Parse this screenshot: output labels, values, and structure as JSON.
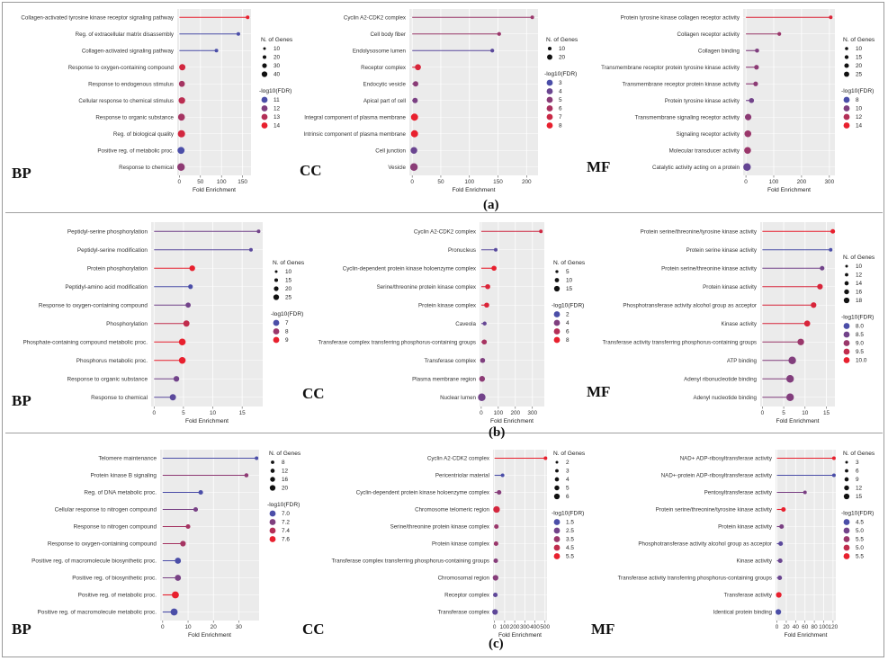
{
  "figure": {
    "sub_labels": [
      "(a)",
      "(b)",
      "(c)"
    ],
    "ontology_labels": [
      "BP",
      "CC",
      "MF"
    ]
  },
  "legend_titles": {
    "size": "N. of Genes",
    "color": "-log10(FDR)"
  },
  "colors": {
    "low": "#4b4ea8",
    "high": "#e8202e",
    "panel_bg": "#ebebeb",
    "grid": "#ffffff"
  },
  "chart_data": [
    {
      "type": "scatter",
      "id": "a-bp",
      "row": 0,
      "col": 0,
      "ontology": "BP",
      "xlabel": "Fold Enrichment",
      "xlim": [
        -5,
        170
      ],
      "xticks": [
        0,
        50,
        100,
        150
      ],
      "categories": [
        "Collagen-activated tyrosine kinase receptor signaling pathway",
        "Reg. of extracellular matrix disassembly",
        "Collagen-activated signaling pathway",
        "Response to oxygen-containing compound",
        "Response to endogenous stimulus",
        "Cellular response to chemical stimulus",
        "Response to organic substance",
        "Reg. of biological quality",
        "Positive reg. of metabolic proc.",
        "Response to chemical"
      ],
      "x": [
        162,
        140,
        88,
        7,
        6,
        6,
        5,
        5,
        4,
        4
      ],
      "genes": [
        6,
        7,
        8,
        30,
        28,
        33,
        35,
        38,
        36,
        40
      ],
      "fdr": [
        14.5,
        11.0,
        11.0,
        14.0,
        13.0,
        13.5,
        13.0,
        14.0,
        11.0,
        12.5
      ],
      "size_legend": [
        10,
        20,
        30,
        40
      ],
      "color_legend": [
        11,
        12,
        13,
        14
      ],
      "size_range": [
        10,
        40
      ],
      "color_range": [
        11,
        14.5
      ]
    },
    {
      "type": "scatter",
      "id": "a-cc",
      "row": 0,
      "col": 1,
      "ontology": "CC",
      "xlabel": "Fold Enrichment",
      "xlim": [
        -5,
        220
      ],
      "xticks": [
        0,
        50,
        100,
        150,
        200
      ],
      "categories": [
        "Cyclin A2-CDK2 complex",
        "Cell body fiber",
        "Endolysosome lumen",
        "Receptor complex",
        "Endocytic vesicle",
        "Apical part of cell",
        "Integral component of plasma membrane",
        "Intrinsic component of plasma membrane",
        "Cell junction",
        "Vesicle"
      ],
      "x": [
        210,
        152,
        140,
        10,
        6,
        5,
        4,
        4,
        3,
        3
      ],
      "genes": [
        4,
        5,
        5,
        15,
        12,
        12,
        20,
        20,
        18,
        22
      ],
      "fdr": [
        5.5,
        5.5,
        3.5,
        7.5,
        5.0,
        4.5,
        8.0,
        8.0,
        4.0,
        5.0
      ],
      "size_legend": [
        10,
        20
      ],
      "color_legend": [
        3,
        4,
        5,
        6,
        7,
        8
      ],
      "size_range": [
        4,
        22
      ],
      "color_range": [
        3,
        8
      ]
    },
    {
      "type": "scatter",
      "id": "a-mf",
      "row": 0,
      "col": 2,
      "ontology": "MF",
      "xlabel": "Fold Enrichment",
      "xlim": [
        -10,
        320
      ],
      "xticks": [
        0,
        100,
        200,
        300
      ],
      "categories": [
        "Protein tyrosine kinase collagen receptor activity",
        "Collagen receptor activity",
        "Collagen binding",
        "Transmembrane receptor protein tyrosine kinase activity",
        "Transmembrane receptor protein kinase activity",
        "Protein tyrosine kinase activity",
        "Transmembrane signaling receptor activity",
        "Signaling receptor activity",
        "Molecular transducer activity",
        "Catalytic activity acting on a protein"
      ],
      "x": [
        305,
        120,
        40,
        38,
        35,
        20,
        8,
        7,
        6,
        4
      ],
      "genes": [
        6,
        7,
        9,
        12,
        12,
        14,
        22,
        24,
        24,
        28
      ],
      "fdr": [
        13.5,
        11.0,
        10.0,
        10.5,
        10.5,
        9.5,
        10.5,
        11.0,
        11.0,
        9.0
      ],
      "size_legend": [
        10,
        15,
        20,
        25
      ],
      "color_legend": [
        8,
        10,
        12,
        14
      ],
      "size_range": [
        6,
        28
      ],
      "color_range": [
        8,
        14
      ]
    },
    {
      "type": "scatter",
      "id": "b-bp",
      "row": 1,
      "col": 0,
      "ontology": "BP",
      "xlabel": "Fold Enrichment",
      "xlim": [
        -0.5,
        18.5
      ],
      "xticks": [
        0,
        5,
        10,
        15
      ],
      "categories": [
        "Peptidyl-serine phosphorylation",
        "Peptidyl-serine modification",
        "Protein phosphorylation",
        "Peptidyl-amino acid modification",
        "Response to oxygen-containing compound",
        "Phosphorylation",
        "Phosphate-containing compound metabolic proc.",
        "Phosphorus metabolic proc.",
        "Response to organic substance",
        "Response to chemical"
      ],
      "x": [
        17.8,
        16.5,
        6.5,
        6.2,
        5.8,
        5.5,
        4.8,
        4.8,
        3.8,
        3.2
      ],
      "genes": [
        10,
        10,
        18,
        14,
        16,
        20,
        22,
        22,
        18,
        20
      ],
      "fdr": [
        7.5,
        7.2,
        9.0,
        7.0,
        7.5,
        8.5,
        9.0,
        9.0,
        7.5,
        7.2
      ],
      "size_legend": [
        10,
        15,
        20,
        25
      ],
      "color_legend": [
        7,
        8,
        9
      ],
      "size_range": [
        10,
        25
      ],
      "color_range": [
        7,
        9
      ]
    },
    {
      "type": "scatter",
      "id": "b-cc",
      "row": 1,
      "col": 1,
      "ontology": "CC",
      "xlabel": "Fold Enrichment",
      "xlim": [
        -10,
        370
      ],
      "xticks": [
        0,
        100,
        200,
        300
      ],
      "xtick_labels": [
        "0",
        "100",
        "200",
        "300"
      ],
      "categories": [
        "Cyclin A2-CDK2 complex",
        "Pronucleus",
        "Cyclin-dependent protein kinase holoenzyme complex",
        "Serine/threonine protein kinase complex",
        "Protein kinase complex",
        "Caveola",
        "Transferase complex transferring phosphorus-containing groups",
        "Transferase complex",
        "Plasma membrane region",
        "Nuclear lumen"
      ],
      "x": [
        350,
        85,
        75,
        38,
        32,
        20,
        18,
        8,
        5,
        3
      ],
      "genes": [
        4,
        4,
        8,
        8,
        8,
        5,
        8,
        8,
        10,
        15
      ],
      "fdr": [
        7.0,
        2.5,
        8.0,
        7.5,
        7.5,
        3.0,
        5.5,
        4.0,
        4.5,
        3.5
      ],
      "size_legend": [
        5,
        10,
        15
      ],
      "color_legend": [
        2,
        4,
        6,
        8
      ],
      "size_range": [
        4,
        15
      ],
      "color_range": [
        2,
        8
      ]
    },
    {
      "type": "scatter",
      "id": "b-mf",
      "row": 1,
      "col": 2,
      "ontology": "MF",
      "xlabel": "Fold Enrichment",
      "xlim": [
        -0.5,
        17
      ],
      "xticks": [
        0,
        5,
        10,
        15
      ],
      "categories": [
        "Protein serine/threonine/tyrosine kinase activity",
        "Protein serine kinase activity",
        "Protein serine/threonine kinase activity",
        "Protein kinase activity",
        "Phosphotransferase activity alcohol group as acceptor",
        "Kinase activity",
        "Transferase activity transferring phosphorus-containing groups",
        "ATP binding",
        "Adenyl ribonucleotide binding",
        "Adenyl nucleotide binding"
      ],
      "x": [
        16.5,
        16.0,
        14.0,
        13.5,
        12.0,
        10.5,
        9.0,
        7.0,
        6.5,
        6.5
      ],
      "genes": [
        12,
        10,
        12,
        14,
        14,
        15,
        16,
        18,
        18,
        18
      ],
      "fdr": [
        10.0,
        8.0,
        8.5,
        9.8,
        9.8,
        9.8,
        9.0,
        8.7,
        8.7,
        8.7
      ],
      "size_legend": [
        10,
        12,
        14,
        16,
        18
      ],
      "color_legend": [
        "8.0",
        "8.5",
        "9.0",
        "9.5",
        "10.0"
      ],
      "size_range": [
        10,
        18
      ],
      "color_range": [
        8,
        10
      ]
    },
    {
      "type": "scatter",
      "id": "c-bp",
      "row": 2,
      "col": 0,
      "ontology": "BP",
      "xlabel": "Fold Enrichment",
      "xlim": [
        -1,
        38
      ],
      "xticks": [
        0,
        10,
        20,
        30
      ],
      "categories": [
        "Telomere maintenance",
        "Protein kinase B signaling",
        "Reg. of DNA metabolic proc.",
        "Cellular response to nitrogen compound",
        "Response to nitrogen compound",
        "Response to oxygen-containing compound",
        "Positive reg. of macromolecule biosynthetic proc.",
        "Positive reg. of biosynthetic proc.",
        "Positive reg. of metabolic proc.",
        "Positive reg. of macromolecule metabolic proc."
      ],
      "x": [
        37,
        33,
        15,
        13,
        10,
        8,
        6,
        6,
        5,
        4.5
      ],
      "genes": [
        4,
        6,
        8,
        8,
        8,
        12,
        14,
        14,
        18,
        18
      ],
      "fdr": [
        7.0,
        7.3,
        7.0,
        7.2,
        7.4,
        7.4,
        7.0,
        7.2,
        7.7,
        7.0
      ],
      "size_legend": [
        8,
        12,
        16,
        20
      ],
      "color_legend": [
        "7.0",
        "7.2",
        "7.4",
        "7.6"
      ],
      "size_range": [
        4,
        20
      ],
      "color_range": [
        7,
        7.7
      ]
    },
    {
      "type": "scatter",
      "id": "c-cc",
      "row": 2,
      "col": 1,
      "ontology": "CC",
      "xlabel": "Fold Enrichment",
      "xlim": [
        -15,
        520
      ],
      "xticks": [
        0,
        100,
        200,
        300,
        400,
        500
      ],
      "categories": [
        "Cyclin A2-CDK2 complex",
        "Pericentriolar material",
        "Cyclin-dependent protein kinase holoenzyme complex",
        "Chromosome telomeric region",
        "Serine/threonine protein kinase complex",
        "Protein kinase complex",
        "Transferase complex transferring phosphorus-containing groups",
        "Chromosomal region",
        "Receptor complex",
        "Transferase complex"
      ],
      "x": [
        505,
        80,
        45,
        20,
        18,
        15,
        12,
        10,
        8,
        5
      ],
      "genes": [
        2,
        2,
        3,
        5,
        3,
        3,
        3,
        4,
        3,
        4
      ],
      "fdr": [
        5.5,
        1.5,
        3.0,
        5.0,
        3.5,
        3.5,
        3.0,
        3.0,
        2.0,
        2.0
      ],
      "size_legend": [
        2,
        3,
        4,
        5,
        6
      ],
      "color_legend": [
        "1.5",
        "2.5",
        "3.5",
        "4.5",
        "5.5"
      ],
      "size_range": [
        2,
        6
      ],
      "color_range": [
        1.5,
        5.5
      ]
    },
    {
      "type": "scatter",
      "id": "c-mf",
      "row": 2,
      "col": 2,
      "ontology": "MF",
      "xlabel": "Fold Enrichment",
      "xlim": [
        -3,
        126
      ],
      "xticks": [
        0,
        20,
        40,
        60,
        80,
        100,
        120
      ],
      "categories": [
        "NAD+ ADP-ribosyltransferase activity",
        "NAD+-protein ADP-ribosyltransferase activity",
        "Pentosyltransferase activity",
        "Protein serine/threonine/tyrosine kinase activity",
        "Protein kinase activity",
        "Phosphotransferase activity alcohol group as acceptor",
        "Kinase activity",
        "Transferase activity transferring phosphorus-containing groups",
        "Transferase activity",
        "Identical protein binding"
      ],
      "x": [
        122,
        122,
        60,
        14,
        10,
        8,
        7,
        6,
        4,
        3
      ],
      "genes": [
        3,
        3,
        3,
        6,
        6,
        6,
        6,
        6,
        9,
        9
      ],
      "fdr": [
        5.5,
        4.5,
        4.8,
        5.5,
        4.8,
        4.6,
        4.7,
        4.7,
        5.5,
        4.5
      ],
      "size_legend": [
        3,
        6,
        9,
        12,
        15
      ],
      "color_legend": [
        "4.5",
        "5.0",
        "5.5",
        "5.0",
        "5.5"
      ],
      "size_range": [
        3,
        15
      ],
      "color_range": [
        4.5,
        5.5
      ]
    }
  ]
}
